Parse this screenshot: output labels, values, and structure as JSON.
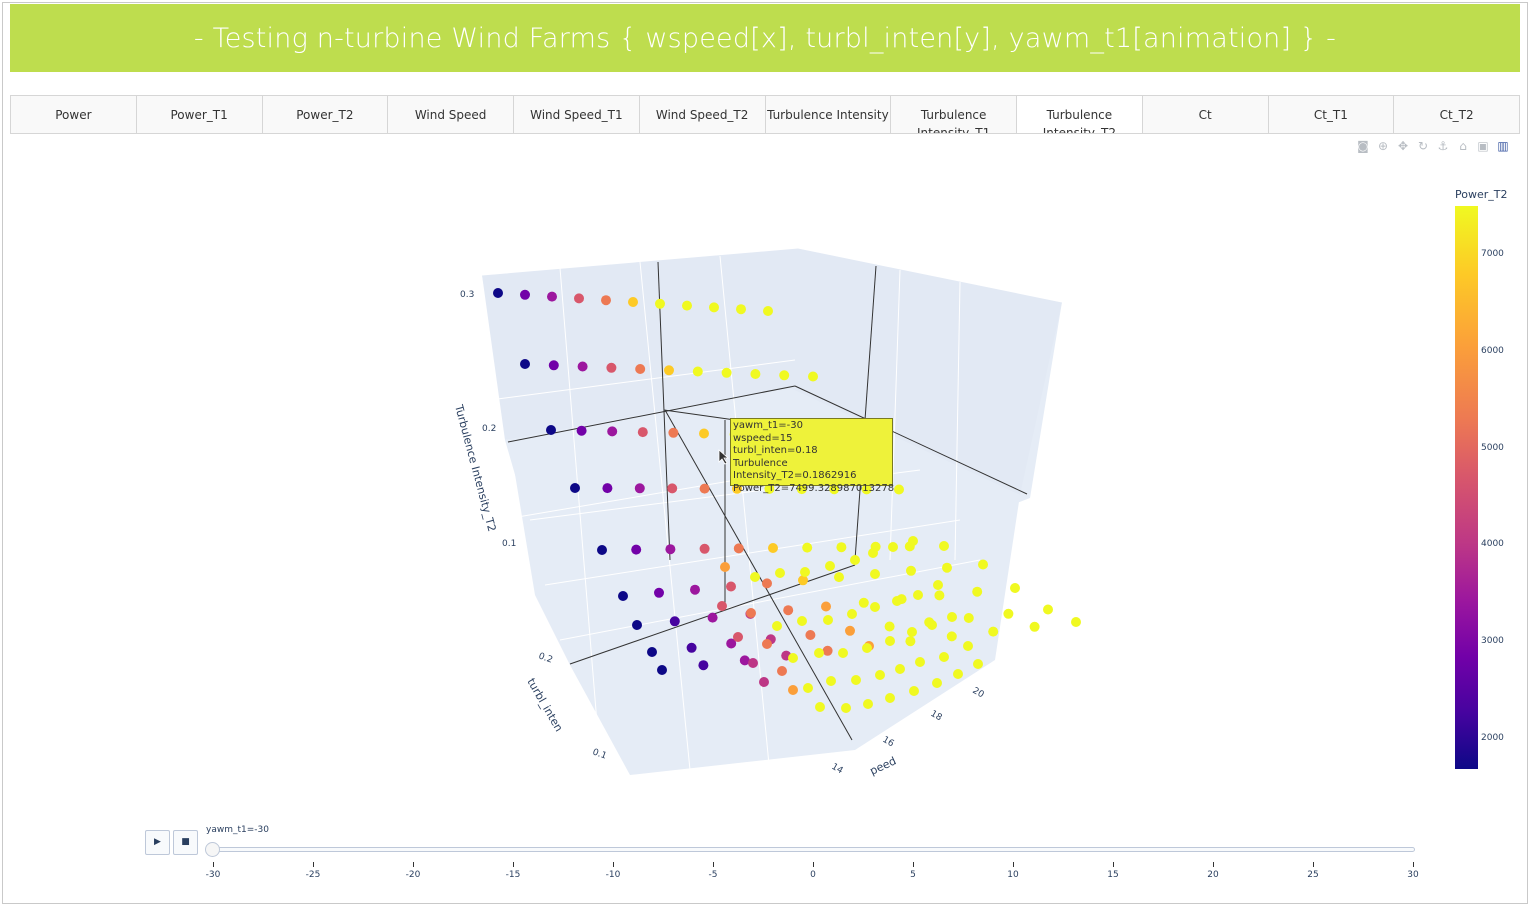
{
  "banner": {
    "title": "- Testing n-turbine Wind Farms { wspeed[x], turbl_inten[y], yawm_t1[animation] } -"
  },
  "tabs": [
    {
      "label": "Power"
    },
    {
      "label": "Power_T1"
    },
    {
      "label": "Power_T2"
    },
    {
      "label": "Wind Speed"
    },
    {
      "label": "Wind Speed_T1"
    },
    {
      "label": "Wind Speed_T2"
    },
    {
      "label": "Turbulence Intensity"
    },
    {
      "label": "Turbulence Intensity_T1"
    },
    {
      "label": "Turbulence Intensity_T2"
    },
    {
      "label": "Ct"
    },
    {
      "label": "Ct_T1"
    },
    {
      "label": "Ct_T2"
    }
  ],
  "active_tab": "Turbulence Intensity_T2",
  "modebar_icons": [
    "camera-icon",
    "zoom-icon",
    "pan-icon",
    "orbit-icon",
    "turntable-icon",
    "home-icon",
    "reset-camera-icon",
    "plotly-logo-icon"
  ],
  "hover": {
    "lines": [
      "yawm_t1=-30",
      "wspeed=15",
      "turbl_inten=0.18",
      "Turbulence Intensity_T2=0.1862916",
      "Power_T2=7499.328987013278"
    ]
  },
  "chart_data": {
    "type": "scatter3d",
    "x_label": "wspeed",
    "y_label": "turbl_inten",
    "z_label": "Turbulence Intensity_T2",
    "x_ticks": [
      "14",
      "16",
      "18",
      "20"
    ],
    "y_ticks": [
      "0.1",
      "0.2"
    ],
    "z_ticks": [
      "0.1",
      "0.2",
      "0.3"
    ],
    "x_values_rows": [
      6,
      7,
      8,
      9,
      10,
      11,
      12,
      13,
      14,
      15,
      16,
      17,
      18,
      19,
      20,
      21
    ],
    "turbl_inten_levels": [
      0.06,
      0.08,
      0.1,
      0.12,
      0.14,
      0.16,
      0.18,
      0.2,
      0.22,
      0.24,
      0.26,
      0.28,
      0.3
    ],
    "note_power_trend": "Power_T2 rises with wspeed; low wspeed dark blue, high wspeed yellow",
    "colorscale": "Plasma",
    "colorbar": {
      "title": "Power_T2",
      "ticks": [
        "7000",
        "6000",
        "5000",
        "4000",
        "3000",
        "2000"
      ],
      "range": [
        1700,
        7500
      ]
    }
  },
  "slider": {
    "current_label": "yawm_t1=-30",
    "play_label": "▶",
    "stop_label": "■",
    "ticks": [
      "-30",
      "-25",
      "-20",
      "-15",
      "-10",
      "-5",
      "0",
      "5",
      "10",
      "15",
      "20",
      "25",
      "30"
    ]
  },
  "colors": {
    "banner": "#bedd4e",
    "scene_bg": "#e5ecf6",
    "hover_bg": "#eef23a"
  }
}
